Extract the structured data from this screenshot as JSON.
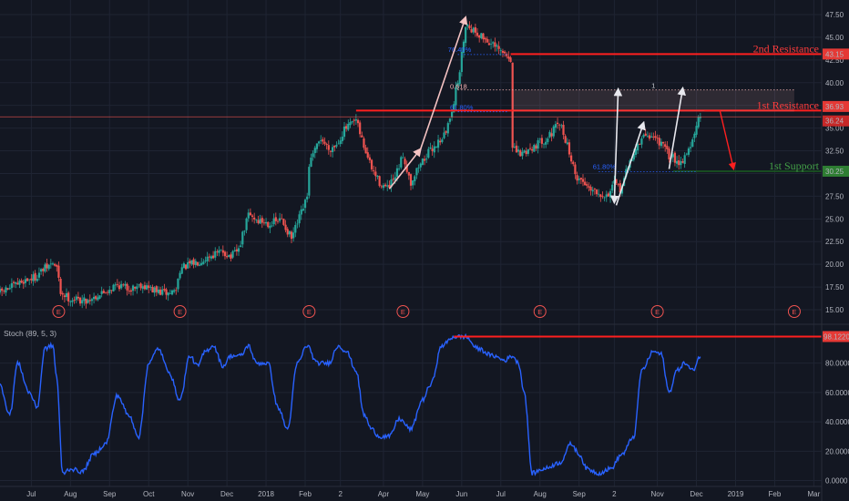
{
  "colors": {
    "background": "#131722",
    "grid": "#1f2433",
    "up": "#26a69a",
    "down": "#ef5350",
    "resistance": "#ff1f1f",
    "support": "#1b5e20",
    "arrow": "#f4c2c2",
    "arrow_white": "#e8e8ee",
    "stoch": "#2962ff",
    "fib": "#2962ff"
  },
  "chart_data": [
    {
      "type": "candlestick",
      "title": "",
      "xlabel": "",
      "ylabel": "",
      "ylim": [
        14.0,
        48.3
      ],
      "grid": true,
      "price_ticks": [
        15.0,
        17.5,
        20.0,
        22.5,
        25.0,
        27.5,
        30.0,
        32.5,
        35.0,
        37.5,
        40.0,
        42.5,
        45.0,
        47.5
      ],
      "time_axis": [
        {
          "label": "Jul",
          "m": 0.8
        },
        {
          "label": "Aug",
          "m": 1.8
        },
        {
          "label": "Sep",
          "m": 2.8
        },
        {
          "label": "Oct",
          "m": 3.8
        },
        {
          "label": "Nov",
          "m": 4.8
        },
        {
          "label": "Dec",
          "m": 5.8
        },
        {
          "label": "2018",
          "m": 6.8
        },
        {
          "label": "Feb",
          "m": 7.8
        },
        {
          "label": "2",
          "m": 8.7
        },
        {
          "label": "Apr",
          "m": 9.8
        },
        {
          "label": "May",
          "m": 10.8
        },
        {
          "label": "Jun",
          "m": 11.8
        },
        {
          "label": "Jul",
          "m": 12.8
        },
        {
          "label": "Aug",
          "m": 13.8
        },
        {
          "label": "Sep",
          "m": 14.8
        },
        {
          "label": "2",
          "m": 15.7
        },
        {
          "label": "Nov",
          "m": 16.8
        },
        {
          "label": "Dec",
          "m": 17.8
        },
        {
          "label": "2019",
          "m": 18.8
        },
        {
          "label": "Feb",
          "m": 19.8
        },
        {
          "label": "Mar",
          "m": 20.8
        }
      ],
      "price_path": [
        [
          0.0,
          16.9
        ],
        [
          0.3,
          17.5
        ],
        [
          0.6,
          18.2
        ],
        [
          0.9,
          18.6
        ],
        [
          1.1,
          19.4
        ],
        [
          1.35,
          20.1
        ],
        [
          1.45,
          19.6
        ],
        [
          1.55,
          16.9
        ],
        [
          1.8,
          16.2
        ],
        [
          2.2,
          16.0
        ],
        [
          2.6,
          16.8
        ],
        [
          3.0,
          17.8
        ],
        [
          3.3,
          17.3
        ],
        [
          3.6,
          17.8
        ],
        [
          4.0,
          17.0
        ],
        [
          4.3,
          16.8
        ],
        [
          4.5,
          17.2
        ],
        [
          4.6,
          19.5
        ],
        [
          5.0,
          20.2
        ],
        [
          5.4,
          21.0
        ],
        [
          5.7,
          21.4
        ],
        [
          5.9,
          20.8
        ],
        [
          6.1,
          21.6
        ],
        [
          6.35,
          25.5
        ],
        [
          6.6,
          24.8
        ],
        [
          6.9,
          24.5
        ],
        [
          7.2,
          24.9
        ],
        [
          7.45,
          22.8
        ],
        [
          7.6,
          24.5
        ],
        [
          7.85,
          27.3
        ],
        [
          7.9,
          31.0
        ],
        [
          8.2,
          33.9
        ],
        [
          8.4,
          32.7
        ],
        [
          8.6,
          33.2
        ],
        [
          8.8,
          34.8
        ],
        [
          9.1,
          35.8
        ],
        [
          9.3,
          33.0
        ],
        [
          9.5,
          30.5
        ],
        [
          9.7,
          29.0
        ],
        [
          9.9,
          28.3
        ],
        [
          10.1,
          29.5
        ],
        [
          10.3,
          32.0
        ],
        [
          10.5,
          29.0
        ],
        [
          10.7,
          30.8
        ],
        [
          10.9,
          32.0
        ],
        [
          11.2,
          33.5
        ],
        [
          11.4,
          34.5
        ],
        [
          11.6,
          38.0
        ],
        [
          11.75,
          41.3
        ],
        [
          11.9,
          46.5
        ],
        [
          12.1,
          45.8
        ],
        [
          12.4,
          44.8
        ],
        [
          12.7,
          43.7
        ],
        [
          13.0,
          42.8
        ],
        [
          13.1,
          42.5
        ],
        [
          13.1,
          32.7
        ],
        [
          13.3,
          32.1
        ],
        [
          13.6,
          32.9
        ],
        [
          14.0,
          34.0
        ],
        [
          14.3,
          35.5
        ],
        [
          14.5,
          33.2
        ],
        [
          14.7,
          29.8
        ],
        [
          15.0,
          28.7
        ],
        [
          15.3,
          28.0
        ],
        [
          15.5,
          27.5
        ],
        [
          15.7,
          28.8
        ],
        [
          15.85,
          28.3
        ],
        [
          16.2,
          32.4
        ],
        [
          16.5,
          34.3
        ],
        [
          16.8,
          33.8
        ],
        [
          17.1,
          32.0
        ],
        [
          17.4,
          31.2
        ],
        [
          17.7,
          33.5
        ],
        [
          17.85,
          35.9
        ],
        [
          17.9,
          36.3
        ]
      ],
      "resistance_2nd": {
        "label": "2nd Resistance",
        "price": 43.15,
        "value_label": "43.15"
      },
      "resistance_1st": {
        "label": "1st Resistance",
        "price": 36.93,
        "value_label": "36.93"
      },
      "support_1st": {
        "label": "1st Support",
        "price": 30.25,
        "value_label": "30.25"
      },
      "last_price": {
        "price": 36.24,
        "value_label": "36.24"
      },
      "fib_levels": [
        {
          "label": "76.40%",
          "price": 43.1
        },
        {
          "label": "0.618",
          "price": 39.1
        },
        {
          "label": "61.80%",
          "price": 36.8
        },
        {
          "label": "61.80%",
          "price": 30.2
        }
      ],
      "fib_box_label": "1",
      "earnings_marker": "E",
      "earnings_months": [
        1.5,
        4.6,
        7.9,
        10.3,
        13.8,
        16.8,
        20.3
      ]
    },
    {
      "type": "line",
      "title": "Stoch (89, 5, 3)",
      "xlabel": "",
      "ylabel": "",
      "ylim": [
        -4,
        104
      ],
      "grid": true,
      "y_ticks": [
        "0.0000",
        "20.0000",
        "40.0000",
        "60.0000",
        "80.0000"
      ],
      "threshold": {
        "value": 98.122,
        "value_label": "98.1220"
      },
      "series": [
        {
          "name": "",
          "points": [
            [
              0.0,
              65
            ],
            [
              0.25,
              45
            ],
            [
              0.45,
              80
            ],
            [
              0.75,
              60
            ],
            [
              0.95,
              50
            ],
            [
              1.15,
              90
            ],
            [
              1.35,
              92
            ],
            [
              1.45,
              70
            ],
            [
              1.6,
              5
            ],
            [
              1.8,
              8
            ],
            [
              2.1,
              6
            ],
            [
              2.4,
              18
            ],
            [
              2.7,
              25
            ],
            [
              3.0,
              58
            ],
            [
              3.3,
              44
            ],
            [
              3.55,
              30
            ],
            [
              3.8,
              80
            ],
            [
              4.05,
              90
            ],
            [
              4.3,
              75
            ],
            [
              4.6,
              55
            ],
            [
              4.85,
              85
            ],
            [
              5.05,
              78
            ],
            [
              5.25,
              88
            ],
            [
              5.45,
              92
            ],
            [
              5.7,
              78
            ],
            [
              5.9,
              85
            ],
            [
              6.15,
              85
            ],
            [
              6.35,
              92
            ],
            [
              6.55,
              80
            ],
            [
              6.85,
              80
            ],
            [
              7.1,
              50
            ],
            [
              7.35,
              35
            ],
            [
              7.6,
              80
            ],
            [
              7.85,
              92
            ],
            [
              8.1,
              80
            ],
            [
              8.4,
              80
            ],
            [
              8.65,
              92
            ],
            [
              8.85,
              88
            ],
            [
              9.1,
              75
            ],
            [
              9.3,
              45
            ],
            [
              9.5,
              35
            ],
            [
              9.7,
              30
            ],
            [
              9.95,
              30
            ],
            [
              10.2,
              42
            ],
            [
              10.5,
              35
            ],
            [
              10.8,
              55
            ],
            [
              11.0,
              65
            ],
            [
              11.3,
              92
            ],
            [
              11.6,
              98
            ],
            [
              11.9,
              98
            ],
            [
              12.2,
              90
            ],
            [
              12.6,
              85
            ],
            [
              12.9,
              82
            ],
            [
              13.1,
              85
            ],
            [
              13.25,
              80
            ],
            [
              13.4,
              60
            ],
            [
              13.6,
              5
            ],
            [
              13.9,
              8
            ],
            [
              14.3,
              12
            ],
            [
              14.6,
              25
            ],
            [
              14.8,
              18
            ],
            [
              15.0,
              8
            ],
            [
              15.3,
              5
            ],
            [
              15.6,
              8
            ],
            [
              15.9,
              18
            ],
            [
              16.2,
              30
            ],
            [
              16.4,
              75
            ],
            [
              16.7,
              88
            ],
            [
              16.9,
              86
            ],
            [
              17.1,
              60
            ],
            [
              17.3,
              75
            ],
            [
              17.5,
              80
            ],
            [
              17.7,
              75
            ],
            [
              17.9,
              85
            ]
          ]
        }
      ]
    }
  ]
}
